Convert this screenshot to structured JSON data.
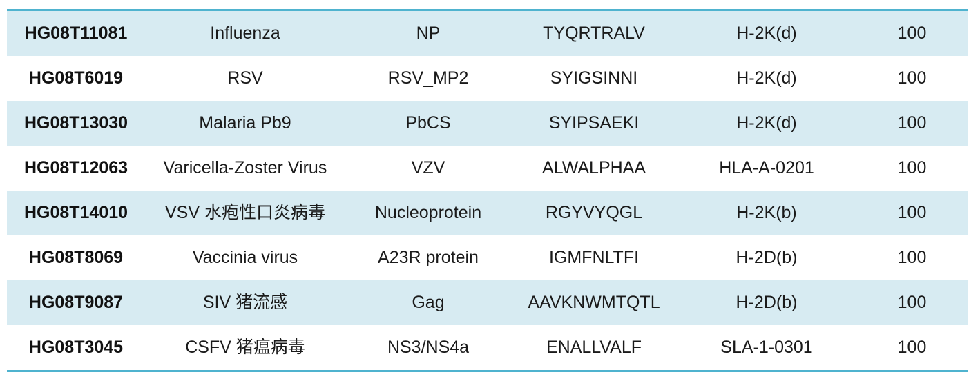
{
  "colors": {
    "rule": "#4fb3cf",
    "shaded_row": "#d7ebf2",
    "plain_row": "#ffffff",
    "text": "#1a1a1a"
  },
  "table": {
    "rows": [
      [
        "HG08T11081",
        "Influenza",
        "NP",
        "TYQRTRALV",
        "H-2K(d)",
        "100"
      ],
      [
        "HG08T6019",
        "RSV",
        "RSV_MP2",
        "SYIGSINNI",
        "H-2K(d)",
        "100"
      ],
      [
        "HG08T13030",
        "Malaria Pb9",
        "PbCS",
        "SYIPSAEKI",
        "H-2K(d)",
        "100"
      ],
      [
        "HG08T12063",
        "Varicella-Zoster Virus",
        "VZV",
        "ALWALPHAA",
        "HLA-A-0201",
        "100"
      ],
      [
        "HG08T14010",
        "VSV 水疱性口炎病毒",
        "Nucleoprotein",
        "RGYVYQGL",
        "H-2K(b)",
        "100"
      ],
      [
        "HG08T8069",
        "Vaccinia virus",
        "A23R protein",
        "IGMFNLTFI",
        "H-2D(b)",
        "100"
      ],
      [
        "HG08T9087",
        "SIV  猪流感",
        "Gag",
        "AAVKNWMTQTL",
        "H-2D(b)",
        "100"
      ],
      [
        "HG08T3045",
        "CSFV 猪瘟病毒",
        "NS3/NS4a",
        "ENALLVALF",
        "SLA-1-0301",
        "100"
      ]
    ]
  }
}
